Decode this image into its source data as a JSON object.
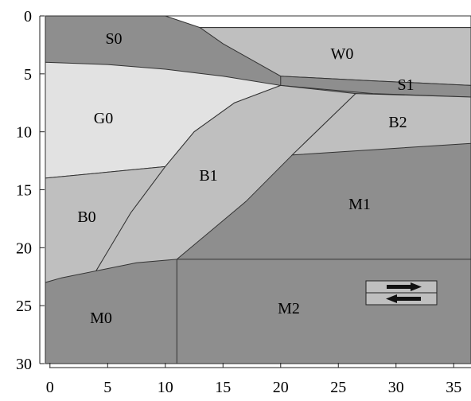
{
  "axes": {
    "xlim": [
      -0.4,
      36.5
    ],
    "ylim": [
      0,
      30
    ],
    "xticks": [
      0,
      5,
      10,
      15,
      20,
      25,
      30,
      35
    ],
    "yticks": [
      0,
      5,
      10,
      15,
      20,
      25,
      30
    ]
  },
  "regions": [
    "S0",
    "W0",
    "S1",
    "G0",
    "B2",
    "B1",
    "M1",
    "B0",
    "M2",
    "M0"
  ]
}
